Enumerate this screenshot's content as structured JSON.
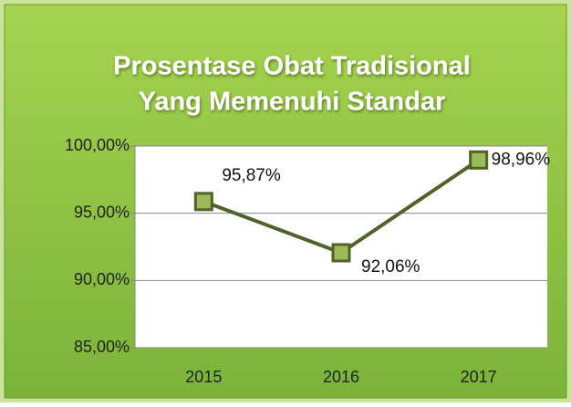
{
  "chart_data": {
    "type": "line",
    "title": "Prosentase Obat Tradisional Yang Memenuhi Standar",
    "title_lines": [
      "Prosentase Obat Tradisional",
      "Yang Memenuhi Standar"
    ],
    "categories": [
      "2015",
      "2016",
      "2017"
    ],
    "values": [
      95.87,
      92.06,
      98.96
    ],
    "value_labels": [
      "95,87%",
      "92,06%",
      "98,96%"
    ],
    "color": "#4f6228",
    "marker_color": "#9bbb59",
    "ylim": [
      85,
      100
    ],
    "yticks": [
      {
        "value": 85,
        "label": "85,00%"
      },
      {
        "value": 90,
        "label": "90,00%"
      },
      {
        "value": 95,
        "label": "95,00%"
      },
      {
        "value": 100,
        "label": "100,00%"
      }
    ],
    "grid": true
  }
}
